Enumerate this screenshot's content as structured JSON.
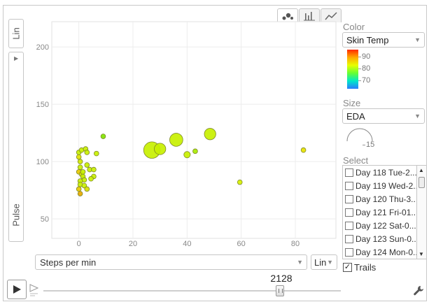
{
  "y_axis": {
    "scale_label": "Lin",
    "metric_label": "Pulse"
  },
  "x_axis": {
    "metric_label": "Steps per min",
    "scale_label": "Lin"
  },
  "chart_tabs": [
    {
      "icon": "bubble-chart-icon"
    },
    {
      "icon": "bar-chart-icon"
    },
    {
      "icon": "line-chart-icon"
    }
  ],
  "player": {
    "current_value": "2128"
  },
  "color_panel": {
    "label": "Color",
    "selected": "Skin Temp",
    "legend_ticks": [
      "90",
      "80",
      "70"
    ]
  },
  "size_panel": {
    "label": "Size",
    "selected": "EDA",
    "gauge_value": "15"
  },
  "select_panel": {
    "label": "Select",
    "items": [
      "Day 118 Tue-2...",
      "Day 119 Wed-2...",
      "Day 120 Thu-3...",
      "Day 121 Fri-01...",
      "Day 122 Sat-0...",
      "Day 123 Sun-0...",
      "Day 124 Mon-0..."
    ]
  },
  "trails": {
    "label": "Trails",
    "checked": "✓"
  },
  "chart_data": {
    "type": "scatter",
    "xlabel": "Steps per min",
    "ylabel": "Pulse",
    "xlim": [
      -10,
      95
    ],
    "ylim": [
      33,
      222
    ],
    "x_ticks": [
      0,
      20,
      40,
      60,
      80
    ],
    "y_ticks": [
      50,
      100,
      150,
      200
    ],
    "grid": true,
    "points": [
      {
        "x": 27,
        "y": 110,
        "size": 9,
        "color": "#c8f000"
      },
      {
        "x": 30,
        "y": 111,
        "size": 6,
        "color": "#c8f000"
      },
      {
        "x": 36,
        "y": 119,
        "size": 7,
        "color": "#c8f000"
      },
      {
        "x": 48.5,
        "y": 124,
        "size": 6,
        "color": "#c8f000"
      },
      {
        "x": 40,
        "y": 106,
        "size": 3,
        "color": "#c8f000"
      },
      {
        "x": 43,
        "y": 109,
        "size": 2,
        "color": "#a8ec00"
      },
      {
        "x": 59.5,
        "y": 82,
        "size": 2,
        "color": "#d6f000"
      },
      {
        "x": 83,
        "y": 110,
        "size": 2,
        "color": "#e8e200"
      },
      {
        "x": 9,
        "y": 122,
        "size": 2,
        "color": "#80e400"
      },
      {
        "x": 0,
        "y": 108,
        "size": 2,
        "color": "#c8f000"
      },
      {
        "x": 1,
        "y": 110,
        "size": 2,
        "color": "#c8f000"
      },
      {
        "x": 2.5,
        "y": 111,
        "size": 2,
        "color": "#c8f000"
      },
      {
        "x": 3,
        "y": 108,
        "size": 2,
        "color": "#c8f000"
      },
      {
        "x": 0,
        "y": 104,
        "size": 2,
        "color": "#e0e200"
      },
      {
        "x": 0.5,
        "y": 100,
        "size": 2,
        "color": "#d0e800"
      },
      {
        "x": 6.5,
        "y": 107,
        "size": 2,
        "color": "#c8f000"
      },
      {
        "x": 0.5,
        "y": 95,
        "size": 2,
        "color": "#c8f000"
      },
      {
        "x": 3,
        "y": 97,
        "size": 2,
        "color": "#c8f000"
      },
      {
        "x": 4,
        "y": 93,
        "size": 2,
        "color": "#c8f000"
      },
      {
        "x": 5.5,
        "y": 93,
        "size": 2,
        "color": "#c8f000"
      },
      {
        "x": 0,
        "y": 91,
        "size": 2,
        "color": "#e8c800"
      },
      {
        "x": 1,
        "y": 89,
        "size": 2,
        "color": "#d8e000"
      },
      {
        "x": 1.5,
        "y": 87,
        "size": 2,
        "color": "#c8f000"
      },
      {
        "x": 5.5,
        "y": 87,
        "size": 2,
        "color": "#c8f000"
      },
      {
        "x": 4.5,
        "y": 85,
        "size": 2,
        "color": "#c8f000"
      },
      {
        "x": 2,
        "y": 84,
        "size": 2,
        "color": "#c8f000"
      },
      {
        "x": 0.5,
        "y": 83,
        "size": 2,
        "color": "#c8f000"
      },
      {
        "x": 0.5,
        "y": 80,
        "size": 2,
        "color": "#c8f000"
      },
      {
        "x": 2,
        "y": 79,
        "size": 2,
        "color": "#c8f000"
      },
      {
        "x": 3,
        "y": 76,
        "size": 2,
        "color": "#d8e000"
      },
      {
        "x": 0,
        "y": 76,
        "size": 2,
        "color": "#e8c800"
      },
      {
        "x": 0.5,
        "y": 72,
        "size": 2,
        "color": "#e8a800"
      },
      {
        "x": 1.5,
        "y": 91,
        "size": 2,
        "color": "#c8f000"
      }
    ]
  }
}
